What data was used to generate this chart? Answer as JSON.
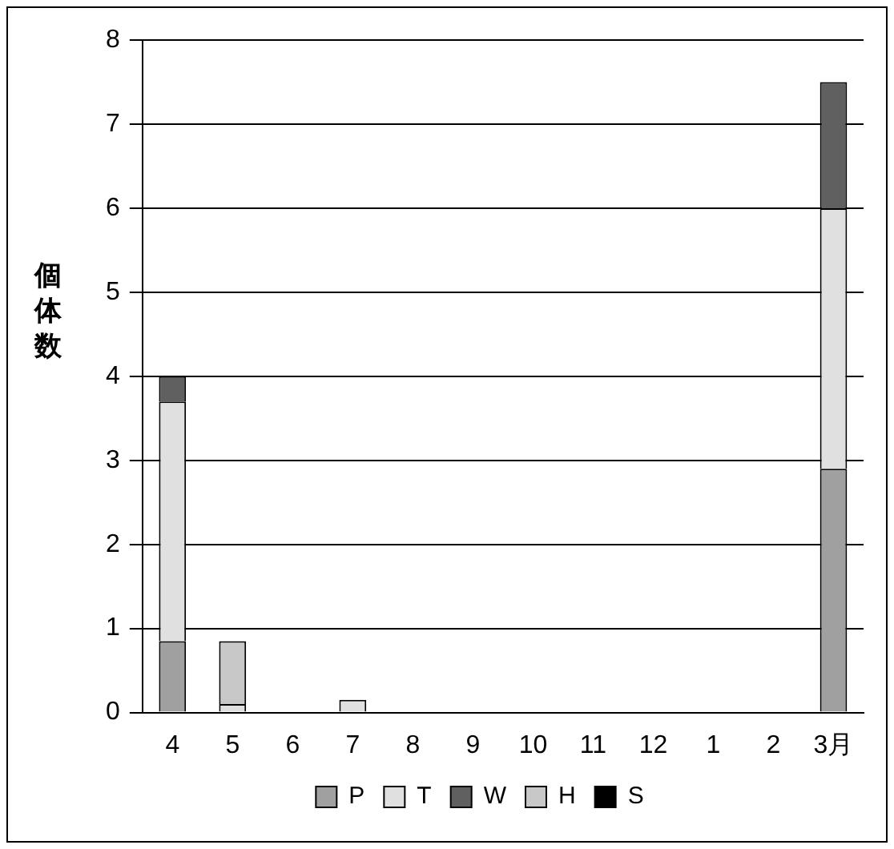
{
  "chart_data": {
    "type": "bar",
    "stacked": true,
    "ylabel": "個体数",
    "categories": [
      "4",
      "5",
      "6",
      "7",
      "8",
      "9",
      "10",
      "11",
      "12",
      "1",
      "2",
      "3月"
    ],
    "series": [
      {
        "name": "P",
        "color": "#a0a0a0",
        "values": [
          0.85,
          0,
          0,
          0,
          0,
          0,
          0,
          0,
          0,
          0,
          0,
          2.9
        ]
      },
      {
        "name": "T",
        "color": "#e0e0e0",
        "values": [
          2.85,
          0.1,
          0,
          0.15,
          0,
          0,
          0,
          0,
          0,
          0,
          0,
          3.1
        ]
      },
      {
        "name": "W",
        "color": "#606060",
        "values": [
          0.3,
          0,
          0,
          0,
          0,
          0,
          0,
          0,
          0,
          0,
          0,
          1.5
        ]
      },
      {
        "name": "H",
        "color": "#c8c8c8",
        "values": [
          0,
          0.75,
          0,
          0,
          0,
          0,
          0,
          0,
          0,
          0,
          0,
          0
        ]
      },
      {
        "name": "S",
        "color": "#000000",
        "values": [
          0,
          0,
          0,
          0,
          0,
          0,
          0,
          0,
          0,
          0,
          0,
          0
        ]
      }
    ],
    "ylim": [
      0,
      8
    ],
    "yticks": [
      0,
      1,
      2,
      3,
      4,
      5,
      6,
      7,
      8
    ],
    "grid": "y",
    "legend": "bottom"
  }
}
